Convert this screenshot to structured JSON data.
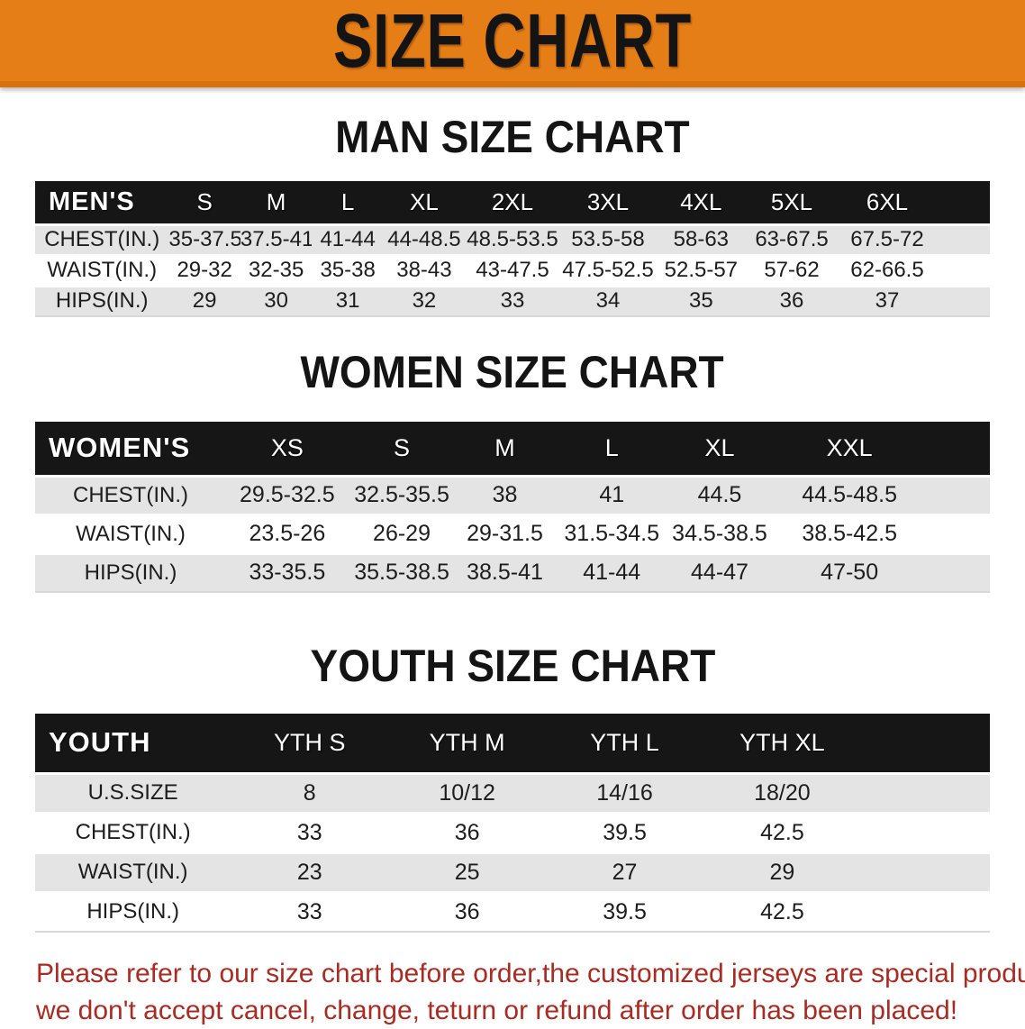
{
  "banner": {
    "title": "SIZE CHART",
    "background_color": "#E67E17",
    "text_color": "#141414"
  },
  "sections": [
    {
      "heading": "MAN SIZE CHART",
      "table": {
        "label": "MEN'S",
        "columns": [
          "S",
          "M",
          "L",
          "XL",
          "2XL",
          "3XL",
          "4XL",
          "5XL",
          "6XL"
        ],
        "rows": [
          {
            "label": "CHEST(IN.)",
            "values": [
              "35-37.5",
              "37.5-41",
              "41-44",
              "44-48.5",
              "48.5-53.5",
              "53.5-58",
              "58-63",
              "63-67.5",
              "67.5-72"
            ]
          },
          {
            "label": "WAIST(IN.)",
            "values": [
              "29-32",
              "32-35",
              "35-38",
              "38-43",
              "43-47.5",
              "47.5-52.5",
              "52.5-57",
              "57-62",
              "62-66.5"
            ]
          },
          {
            "label": "HIPS(IN.)",
            "values": [
              "29",
              "30",
              "31",
              "32",
              "33",
              "34",
              "35",
              "36",
              "37"
            ]
          }
        ]
      }
    },
    {
      "heading": "WOMEN SIZE CHART",
      "table": {
        "label": "WOMEN'S",
        "columns": [
          "XS",
          "S",
          "M",
          "L",
          "XL",
          "XXL"
        ],
        "rows": [
          {
            "label": "CHEST(IN.)",
            "values": [
              "29.5-32.5",
              "32.5-35.5",
              "38",
              "41",
              "44.5",
              "44.5-48.5"
            ]
          },
          {
            "label": "WAIST(IN.)",
            "values": [
              "23.5-26",
              "26-29",
              "29-31.5",
              "31.5-34.5",
              "34.5-38.5",
              "38.5-42.5"
            ]
          },
          {
            "label": "HIPS(IN.)",
            "values": [
              "33-35.5",
              "35.5-38.5",
              "38.5-41",
              "41-44",
              "44-47",
              "47-50"
            ]
          }
        ]
      }
    },
    {
      "heading": "YOUTH SIZE CHART",
      "table": {
        "label": "YOUTH",
        "columns": [
          "YTH S",
          "YTH M",
          "YTH L",
          "YTH XL"
        ],
        "rows": [
          {
            "label": "U.S.SIZE",
            "values": [
              "8",
              "10/12",
              "14/16",
              "18/20"
            ]
          },
          {
            "label": "CHEST(IN.)",
            "values": [
              "33",
              "36",
              "39.5",
              "42.5"
            ]
          },
          {
            "label": "WAIST(IN.)",
            "values": [
              "23",
              "25",
              "27",
              "29"
            ]
          },
          {
            "label": "HIPS(IN.)",
            "values": [
              "33",
              "36",
              "39.5",
              "42.5"
            ]
          }
        ]
      }
    }
  ],
  "disclaimer": {
    "line1": "Please refer to our size chart before order,the customized jerseys are special products,",
    "line2": "we don't accept cancel, change, teturn or refund after order has been placed!",
    "color": "#A62C24"
  },
  "colors": {
    "banner_orange": "#E67E17",
    "table_header_black": "#161616",
    "row_band_gray": "#e4e4e4",
    "disclaimer_red": "#A62C24"
  }
}
